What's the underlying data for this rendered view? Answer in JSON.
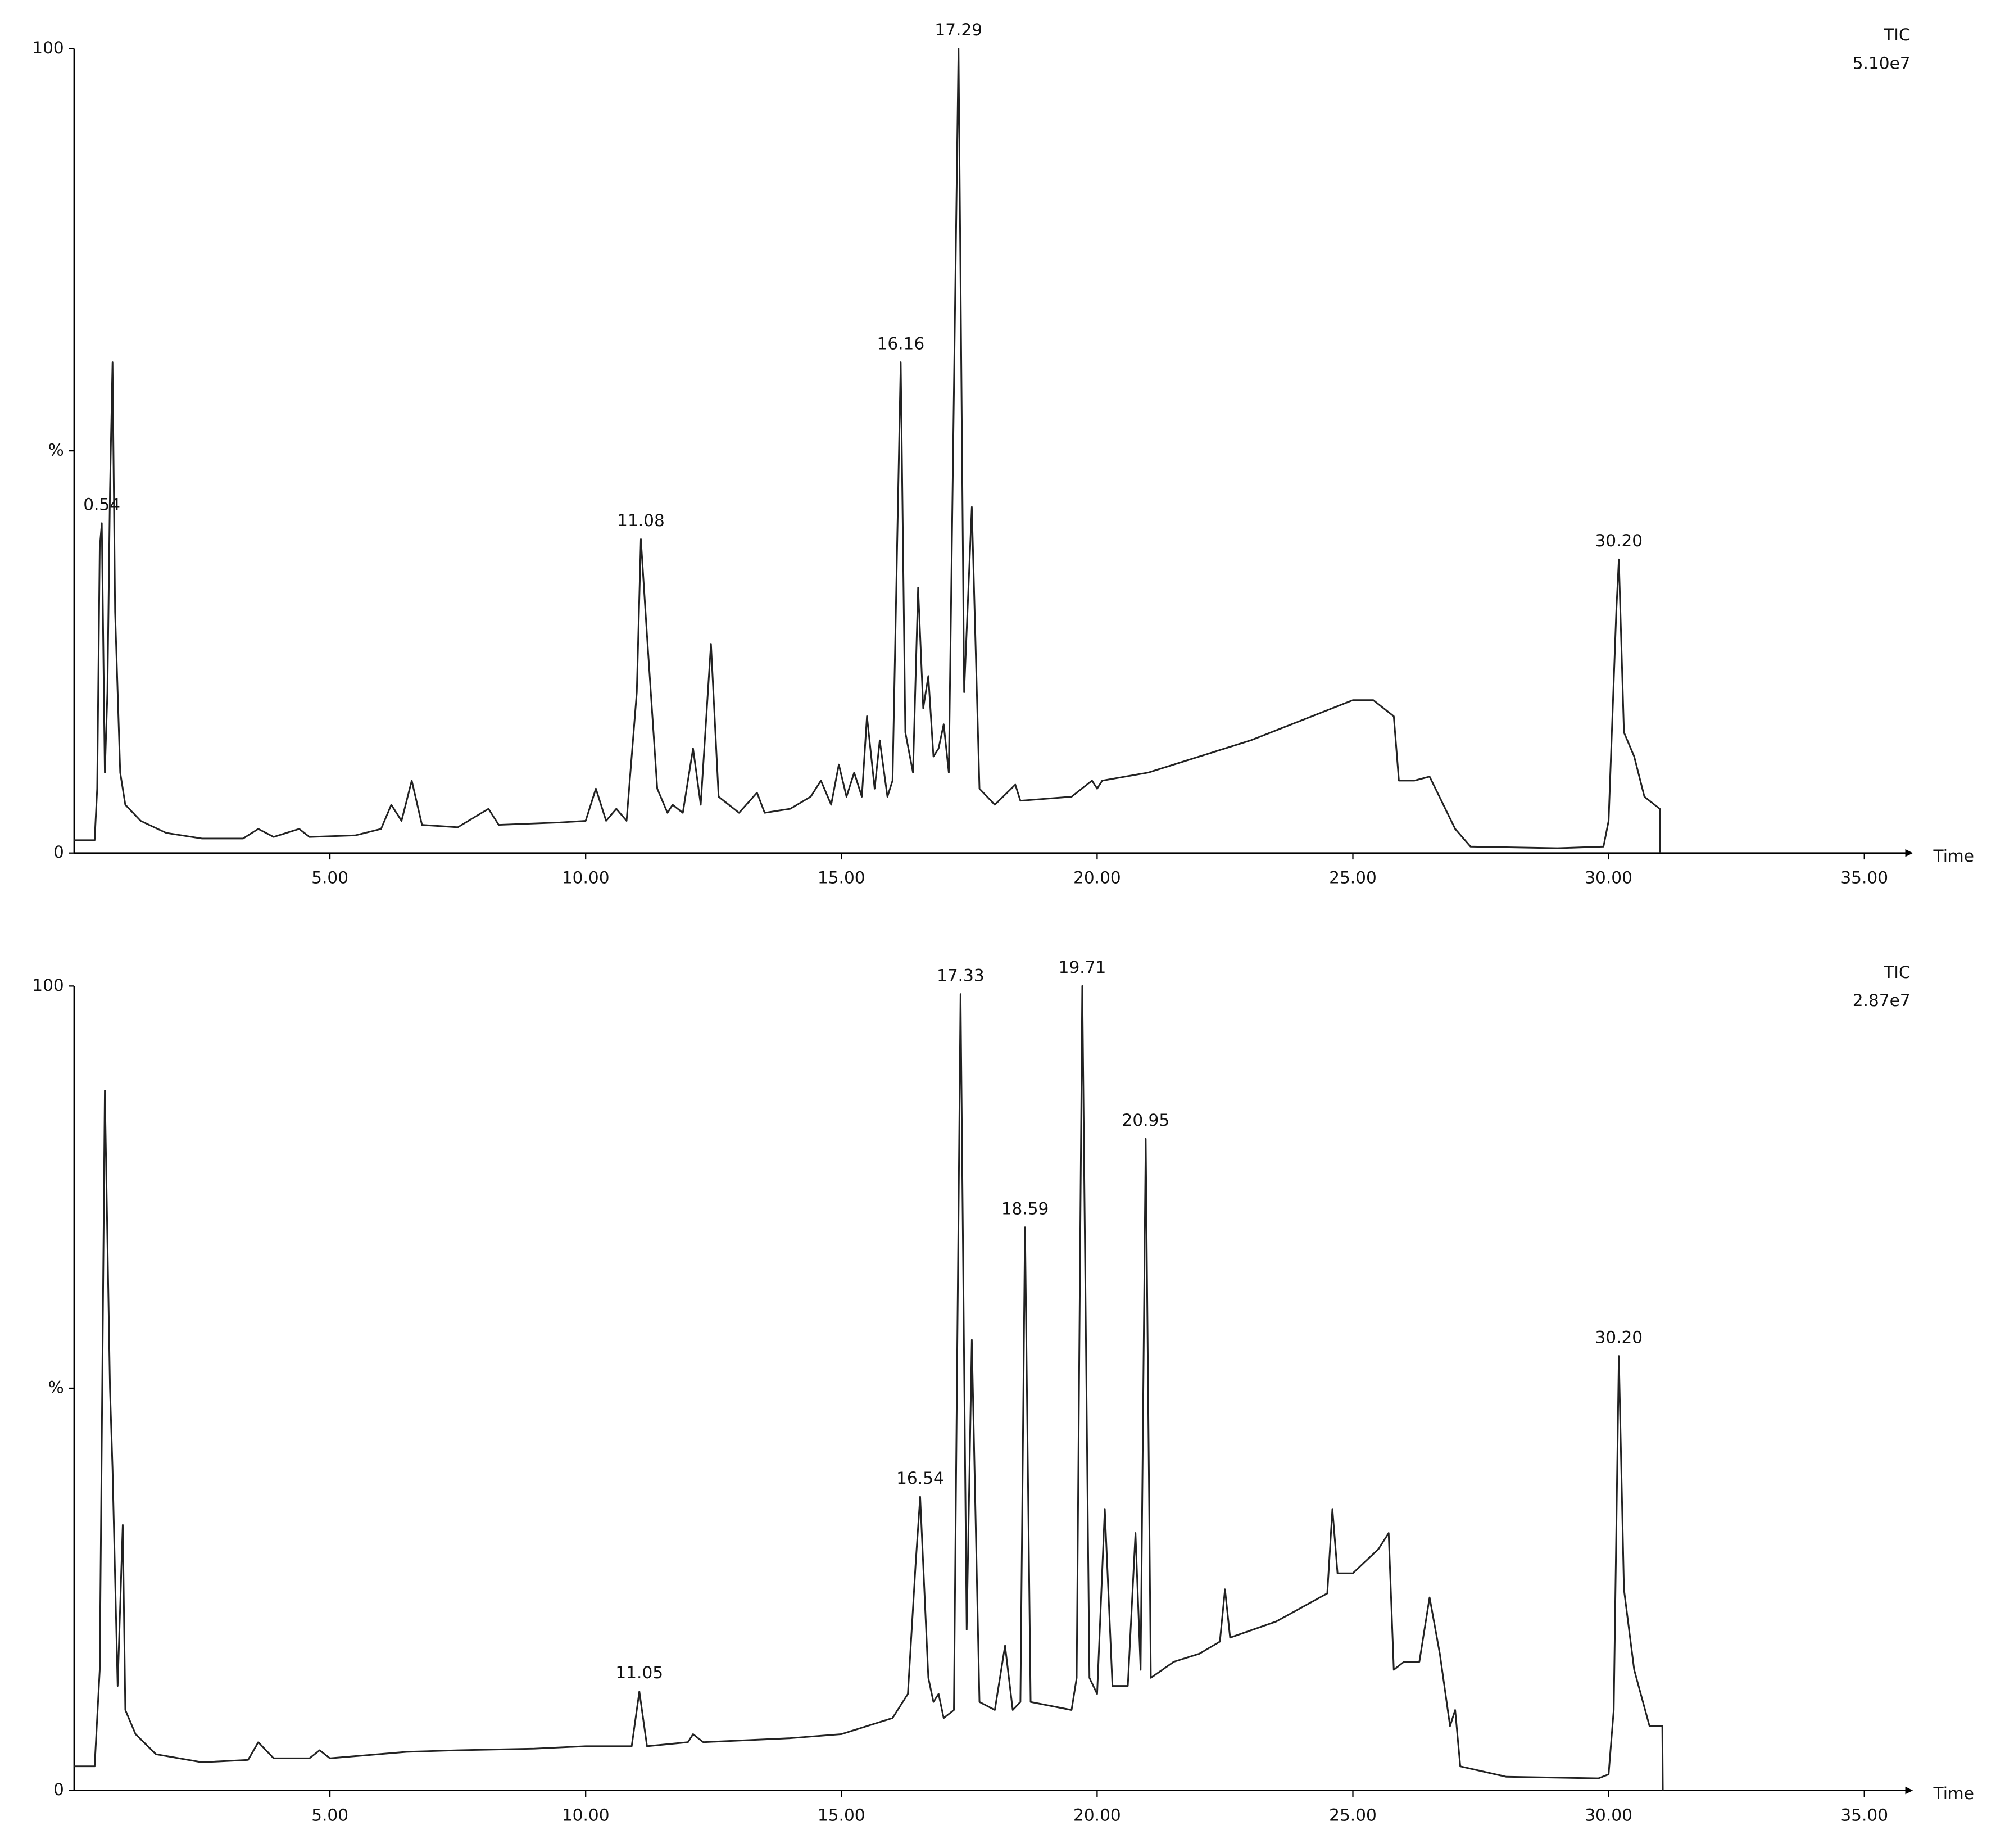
{
  "chart_data": [
    {
      "type": "line",
      "header": "TIC",
      "scale": "5.10e7",
      "x_label": "Time",
      "xlim": [
        0,
        35.8
      ],
      "ylim": [
        0,
        100
      ],
      "xticks": [
        {
          "value": 5,
          "label": "5.00"
        },
        {
          "value": 10,
          "label": "10.00"
        },
        {
          "value": 15,
          "label": "15.00"
        },
        {
          "value": 20,
          "label": "20.00"
        },
        {
          "value": 25,
          "label": "25.00"
        },
        {
          "value": 30,
          "label": "30.00"
        },
        {
          "value": 35,
          "label": "35.00"
        }
      ],
      "yticks": [
        0,
        {
          "value": 50,
          "label": "%"
        },
        100
      ],
      "x": [
        0,
        0.4,
        0.45,
        0.5,
        0.54,
        0.6,
        0.65,
        0.7,
        0.75,
        0.8,
        0.9,
        1.0,
        1.3,
        1.8,
        2.5,
        3.3,
        3.6,
        3.9,
        4.4,
        4.6,
        5.5,
        6.0,
        6.2,
        6.4,
        6.6,
        6.8,
        7.5,
        8.1,
        8.3,
        9.5,
        10.0,
        10.2,
        10.4,
        10.6,
        10.8,
        11.0,
        11.08,
        11.2,
        11.4,
        11.6,
        11.7,
        11.9,
        12.1,
        12.25,
        12.45,
        12.6,
        13.0,
        13.35,
        13.5,
        14.0,
        14.4,
        14.6,
        14.8,
        14.95,
        15.1,
        15.25,
        15.4,
        15.5,
        15.65,
        15.75,
        15.9,
        16.0,
        16.16,
        16.25,
        16.4,
        16.5,
        16.6,
        16.7,
        16.8,
        16.9,
        17.0,
        17.1,
        17.29,
        17.4,
        17.55,
        17.7,
        18.0,
        18.4,
        18.5,
        19.5,
        19.9,
        20.0,
        20.1,
        21.0,
        22.0,
        23.0,
        24.0,
        25.0,
        25.4,
        25.8,
        25.9,
        26.2,
        26.5,
        27.0,
        27.3,
        29.0,
        29.9,
        30.0,
        30.15,
        30.2,
        30.3,
        30.5,
        30.7,
        31.0,
        31.01
      ],
      "series": [
        {
          "color": "#222222",
          "values": [
            1.6,
            1.6,
            8,
            38,
            41,
            10,
            20,
            45,
            61,
            30,
            10,
            6,
            4,
            2.5,
            1.8,
            1.8,
            3,
            2,
            3,
            2,
            2.2,
            3,
            6,
            4,
            9,
            3.5,
            3.2,
            5.5,
            3.5,
            3.8,
            4,
            8,
            4,
            5.5,
            4,
            20,
            39,
            27,
            8,
            5,
            6,
            5,
            13,
            6,
            26,
            7,
            5,
            7.5,
            5,
            5.5,
            7,
            9,
            6,
            11,
            7,
            10,
            7,
            17,
            8,
            14,
            7,
            9,
            61,
            15,
            10,
            33,
            18,
            22,
            12,
            13,
            16,
            10,
            100,
            20,
            43,
            8,
            6,
            8.5,
            6.5,
            7,
            9,
            8,
            9,
            10,
            12,
            14,
            16.5,
            19,
            19,
            17,
            9,
            9,
            9.5,
            3,
            0.8,
            0.6,
            0.8,
            4,
            30,
            36.5,
            15,
            12,
            7,
            5.5,
            0
          ]
        }
      ],
      "peak_labels": [
        {
          "x": 0.54,
          "y": 41,
          "label": "0.54"
        },
        {
          "x": 11.08,
          "y": 39,
          "label": "11.08"
        },
        {
          "x": 16.16,
          "y": 61,
          "label": "16.16"
        },
        {
          "x": 17.29,
          "y": 100,
          "label": "17.29"
        },
        {
          "x": 30.2,
          "y": 36.5,
          "label": "30.20"
        }
      ]
    },
    {
      "type": "line",
      "header": "TIC",
      "scale": "2.87e7",
      "x_label": "Time",
      "xlim": [
        0,
        35.8
      ],
      "ylim": [
        0,
        100
      ],
      "xticks": [
        {
          "value": 5,
          "label": "5.00"
        },
        {
          "value": 10,
          "label": "10.00"
        },
        {
          "value": 15,
          "label": "15.00"
        },
        {
          "value": 20,
          "label": "20.00"
        },
        {
          "value": 25,
          "label": "25.00"
        },
        {
          "value": 30,
          "label": "30.00"
        },
        {
          "value": 35,
          "label": "35.00"
        }
      ],
      "yticks": [
        0,
        {
          "value": 50,
          "label": "%"
        },
        100
      ],
      "x": [
        0,
        0.4,
        0.5,
        0.6,
        0.7,
        0.75,
        0.85,
        0.95,
        1.0,
        1.2,
        1.6,
        2.5,
        3.4,
        3.6,
        3.9,
        4.6,
        4.8,
        5.0,
        6.5,
        7.5,
        9.0,
        10.0,
        10.9,
        11.05,
        11.2,
        12.0,
        12.1,
        12.3,
        14.0,
        15.0,
        15.5,
        16.0,
        16.3,
        16.45,
        16.54,
        16.7,
        16.8,
        16.9,
        17.0,
        17.2,
        17.33,
        17.45,
        17.55,
        17.7,
        18.0,
        18.2,
        18.35,
        18.5,
        18.59,
        18.7,
        19.5,
        19.6,
        19.71,
        19.85,
        20.0,
        20.15,
        20.3,
        20.6,
        20.75,
        20.85,
        20.95,
        21.05,
        21.5,
        22.0,
        22.4,
        22.5,
        22.6,
        23.5,
        24.5,
        24.6,
        24.7,
        25.0,
        25.5,
        25.7,
        25.8,
        26.0,
        26.3,
        26.5,
        26.7,
        26.9,
        27.0,
        27.1,
        28.0,
        29.8,
        30.0,
        30.1,
        30.2,
        30.3,
        30.5,
        30.8,
        31.05,
        31.06
      ],
      "series": [
        {
          "color": "#222222",
          "values": [
            3,
            3,
            15,
            87,
            50,
            40,
            13,
            33,
            10,
            7,
            4.5,
            3.5,
            3.8,
            6,
            4,
            4,
            5,
            4,
            4.8,
            5,
            5.2,
            5.5,
            5.5,
            12.3,
            5.5,
            6,
            7,
            6,
            6.5,
            7,
            8,
            9,
            12,
            28,
            36.5,
            14,
            11,
            12,
            9,
            10,
            99,
            20,
            56,
            11,
            10,
            18,
            10,
            11,
            70,
            11,
            10,
            14,
            100,
            14,
            12,
            35,
            13,
            13,
            32,
            15,
            81,
            14,
            16,
            17,
            18.5,
            25,
            19,
            21,
            24.5,
            35,
            27,
            27,
            30,
            32,
            15,
            16,
            16,
            24,
            17,
            8,
            10,
            3,
            1.7,
            1.5,
            2,
            10,
            54,
            25,
            15,
            8,
            8,
            0
          ]
        }
      ],
      "peak_labels": [
        {
          "x": 11.05,
          "y": 12.3,
          "label": "11.05"
        },
        {
          "x": 16.54,
          "y": 36.5,
          "label": "16.54"
        },
        {
          "x": 17.33,
          "y": 99,
          "label": "17.33"
        },
        {
          "x": 18.59,
          "y": 70,
          "label": "18.59"
        },
        {
          "x": 19.71,
          "y": 100,
          "label": "19.71"
        },
        {
          "x": 20.95,
          "y": 81,
          "label": "20.95"
        },
        {
          "x": 30.2,
          "y": 54,
          "label": "30.20"
        }
      ]
    }
  ]
}
